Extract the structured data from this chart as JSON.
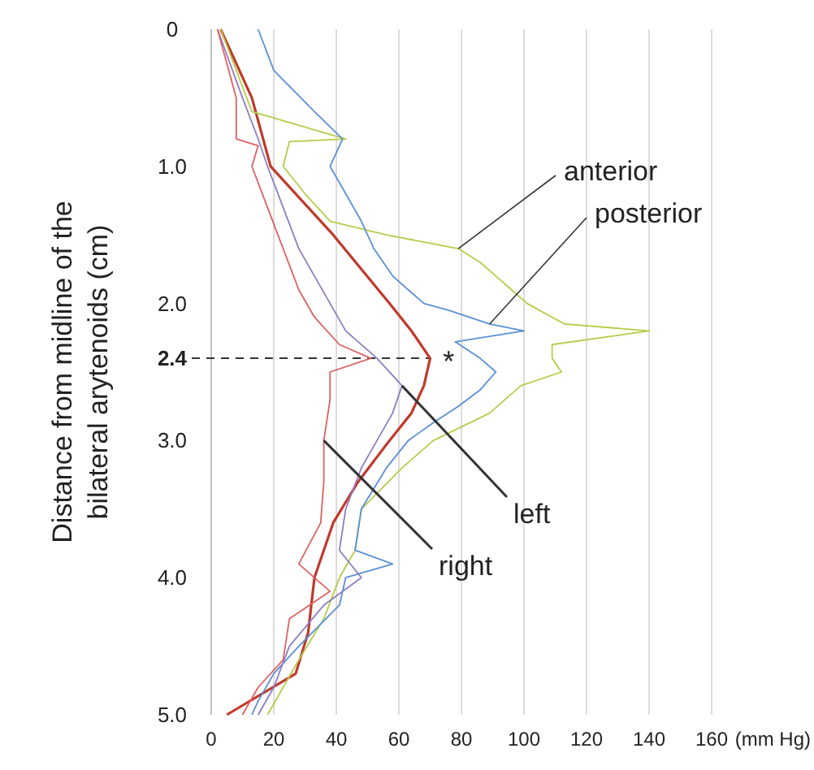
{
  "chart_data": {
    "type": "line",
    "xlabel": "(mm Hg)",
    "ylabel": "Distance from midline of the\nbilateral arytenoids (cm)",
    "xlim": [
      0,
      160
    ],
    "xticks": [
      0,
      20,
      40,
      60,
      80,
      100,
      120,
      140,
      160
    ],
    "ylim": [
      5,
      0
    ],
    "yticks": [
      0,
      {
        "value": 1,
        "label": "1.0"
      },
      {
        "value": 2,
        "label": "2.0"
      },
      {
        "value": 3,
        "label": "3.0"
      },
      {
        "value": 4,
        "label": "4.0"
      },
      {
        "value": 5,
        "label": "5.0"
      }
    ],
    "grid": "x",
    "marker": "none",
    "line_style": "solid",
    "series": [
      {
        "color": "#c0392b",
        "x": [
          3,
          13,
          19,
          39,
          57,
          64,
          70,
          68,
          64,
          57,
          47,
          39,
          33,
          31,
          27,
          5
        ],
        "values": [
          0,
          0.5,
          1,
          1.5,
          2,
          2.2,
          2.4,
          2.6,
          2.8,
          3,
          3.3,
          3.6,
          4,
          4.4,
          4.7,
          5
        ]
      },
      {
        "name": "anterior",
        "color": "#b5cc4a",
        "x": [
          3,
          8,
          13,
          43,
          25,
          23,
          30,
          38,
          56,
          79,
          86,
          91,
          96,
          101,
          113,
          140,
          109,
          109,
          112,
          99,
          89,
          71,
          61,
          48,
          46,
          41,
          36,
          28,
          23,
          18
        ],
        "values": [
          0,
          0.3,
          0.6,
          0.8,
          0.82,
          1,
          1.2,
          1.4,
          1.5,
          1.6,
          1.7,
          1.8,
          1.9,
          2,
          2.15,
          2.2,
          2.3,
          2.4,
          2.5,
          2.6,
          2.8,
          3,
          3.2,
          3.5,
          3.8,
          4,
          4.3,
          4.6,
          4.8,
          5
        ]
      },
      {
        "name": "posterior",
        "color": "#5b8fd6",
        "x": [
          15,
          20,
          33,
          42,
          38,
          43,
          48,
          52,
          58,
          68,
          76,
          89,
          100,
          78,
          86,
          91,
          86,
          79,
          71,
          63,
          56,
          48,
          46,
          58,
          43,
          41,
          28,
          20,
          15,
          13
        ],
        "values": [
          0,
          0.3,
          0.6,
          0.8,
          1,
          1.2,
          1.4,
          1.6,
          1.8,
          2,
          2.05,
          2.15,
          2.2,
          2.28,
          2.4,
          2.5,
          2.63,
          2.75,
          2.87,
          3,
          3.2,
          3.5,
          3.8,
          3.9,
          4,
          4.2,
          4.5,
          4.7,
          4.9,
          5
        ]
      },
      {
        "name": "left",
        "color": "#8e7cc3",
        "x": [
          2,
          10,
          15,
          18,
          23,
          28,
          33,
          38,
          43,
          53,
          61,
          58,
          53,
          48,
          43,
          41,
          48,
          36,
          25,
          20,
          15
        ],
        "values": [
          0,
          0.5,
          0.8,
          1,
          1.3,
          1.6,
          1.8,
          2,
          2.2,
          2.4,
          2.6,
          2.8,
          3,
          3.2,
          3.5,
          3.8,
          4,
          4.2,
          4.5,
          4.8,
          5
        ]
      },
      {
        "name": "right",
        "color": "#e06060",
        "x": [
          2,
          8,
          8,
          15,
          13,
          18,
          23,
          28,
          33,
          41,
          51,
          38,
          38,
          36,
          36,
          35,
          28,
          38,
          25,
          23,
          15,
          10
        ],
        "values": [
          0,
          0.5,
          0.8,
          0.85,
          1,
          1.3,
          1.6,
          1.9,
          2.1,
          2.3,
          2.4,
          2.5,
          2.7,
          3,
          3.3,
          3.6,
          3.9,
          4.1,
          4.3,
          4.6,
          4.8,
          5
        ]
      }
    ],
    "ref_lines": [
      {
        "axis": "y",
        "value": 2.4,
        "label": "2.4",
        "line_style": "dashed",
        "color": "#333333"
      }
    ],
    "annotations": [
      {
        "text": "*",
        "x": 72,
        "y": 2.4
      }
    ]
  }
}
